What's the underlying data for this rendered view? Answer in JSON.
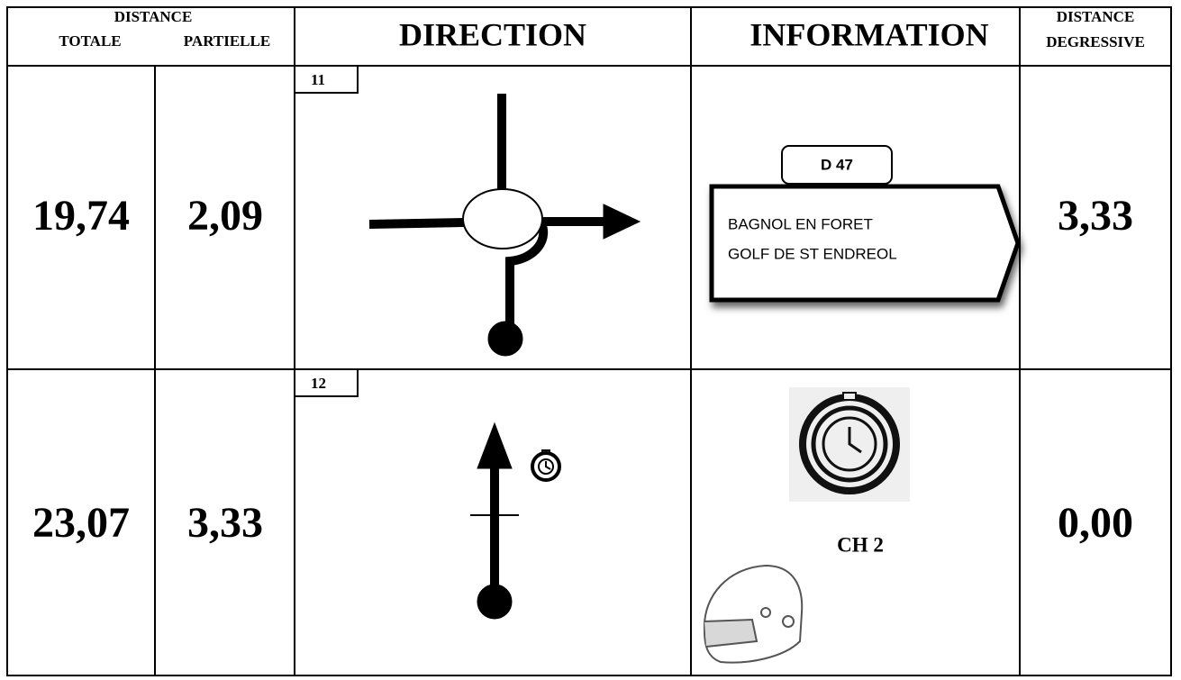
{
  "header": {
    "distance": "DISTANCE",
    "total": "TOTALE",
    "partial": "PARTIELLE",
    "direction": "DIRECTION",
    "information": "INFORMATION",
    "remaining": "DISTANCE",
    "remaining_sub": "DEGRESSIVE"
  },
  "rows": [
    {
      "total": "19,74",
      "partial": "2,09",
      "step": "11",
      "sign_road": "D 47",
      "sign_lines": [
        "BAGNOL EN FORET",
        "GOLF DE ST ENDREOL"
      ],
      "remaining": "3,33"
    },
    {
      "total": "23,07",
      "partial": "3,33",
      "step": "12",
      "info": "CH 2",
      "remaining": "0,00"
    }
  ]
}
